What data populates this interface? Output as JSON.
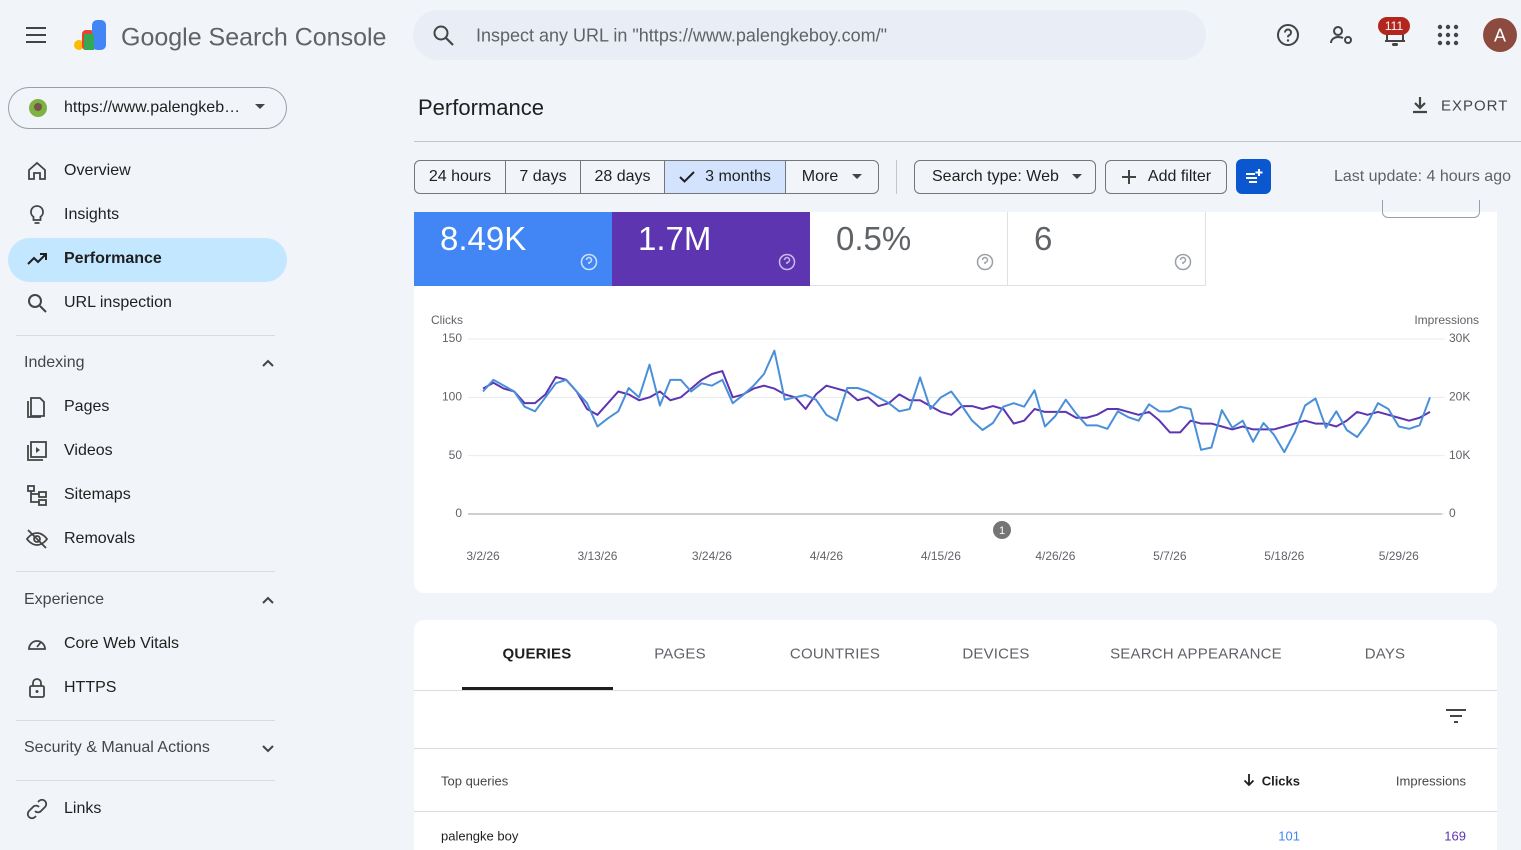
{
  "header": {
    "product": "Google Search Console",
    "search_placeholder": "Inspect any URL in \"https://www.palengkeboy.com/\"",
    "notification_count": "111",
    "avatar": "A"
  },
  "sidebar": {
    "property": "https://www.palengkeb…",
    "items": [
      "Overview",
      "Insights",
      "Performance",
      "URL inspection"
    ],
    "groups": [
      {
        "title": "Indexing",
        "items": [
          "Pages",
          "Videos",
          "Sitemaps",
          "Removals"
        ]
      },
      {
        "title": "Experience",
        "items": [
          "Core Web Vitals",
          "HTTPS"
        ]
      },
      {
        "title": "Security & Manual Actions",
        "items": []
      }
    ],
    "footer_items": [
      "Links"
    ]
  },
  "page": {
    "title": "Performance",
    "export": "EXPORT",
    "date_ranges": [
      "24 hours",
      "7 days",
      "28 days",
      "3 months",
      "More"
    ],
    "search_type": "Search type: Web",
    "add_filter": "Add filter",
    "last_update": "Last update: 4 hours ago"
  },
  "metrics": [
    "8.49K",
    "1.7M",
    "0.5%",
    "6"
  ],
  "chart_data": {
    "type": "line",
    "categories": [
      "3/2/26",
      null,
      null,
      null,
      null,
      null,
      null,
      null,
      null,
      null,
      null,
      "3/13/26",
      null,
      null,
      null,
      null,
      null,
      null,
      null,
      null,
      null,
      null,
      "3/24/26",
      null,
      null,
      null,
      null,
      null,
      null,
      null,
      null,
      null,
      null,
      "4/4/26",
      null,
      null,
      null,
      null,
      null,
      null,
      null,
      null,
      null,
      null,
      "4/15/26",
      null,
      null,
      null,
      null,
      null,
      null,
      null,
      null,
      null,
      null,
      "4/26/26",
      null,
      null,
      null,
      null,
      null,
      null,
      null,
      null,
      null,
      null,
      "5/7/26",
      null,
      null,
      null,
      null,
      null,
      null,
      null,
      null,
      null,
      null,
      "5/18/26",
      null,
      null,
      null,
      null,
      null,
      null,
      null,
      null,
      null,
      null,
      "5/29/26",
      null,
      null,
      null
    ],
    "series": [
      {
        "name": "Clicks",
        "color": "#4a90d9",
        "values": [
          105,
          115,
          110,
          105,
          92,
          88,
          100,
          112,
          115,
          105,
          95,
          75,
          82,
          88,
          108,
          100,
          128,
          93,
          115,
          115,
          105,
          112,
          110,
          115,
          95,
          102,
          110,
          120,
          140,
          98,
          100,
          102,
          98,
          85,
          80,
          108,
          108,
          105,
          100,
          95,
          88,
          90,
          117,
          90,
          100,
          105,
          93,
          80,
          72,
          78,
          92,
          95,
          92,
          106,
          75,
          84,
          98,
          86,
          76,
          76,
          73,
          88,
          83,
          80,
          94,
          88,
          88,
          92,
          90,
          55,
          57,
          89,
          74,
          80,
          62,
          78,
          68,
          53,
          70,
          93,
          99,
          74,
          88,
          72,
          66,
          78,
          95,
          90,
          75,
          73,
          76,
          100
        ]
      },
      {
        "name": "Impressions",
        "color": "#5e35b1",
        "axis": "y2",
        "values": [
          21500,
          22500,
          21500,
          21000,
          19000,
          19000,
          20500,
          23500,
          23000,
          21000,
          18000,
          17000,
          19000,
          21000,
          20500,
          19500,
          20000,
          21000,
          19500,
          20000,
          21500,
          23000,
          24000,
          24500,
          20000,
          20500,
          21500,
          22000,
          21500,
          20500,
          20000,
          18000,
          20500,
          22000,
          21500,
          21000,
          19500,
          20000,
          18500,
          19000,
          20500,
          19500,
          19500,
          18500,
          17500,
          17000,
          18500,
          18500,
          18000,
          18500,
          18000,
          15500,
          16000,
          18000,
          17500,
          17500,
          17500,
          16500,
          16500,
          17000,
          18000,
          18000,
          17500,
          17000,
          17500,
          16000,
          14000,
          14000,
          16000,
          15500,
          15500,
          15000,
          14500,
          15000,
          14500,
          14500,
          14500,
          15000,
          15500,
          16000,
          15500,
          15500,
          15000,
          16000,
          17500,
          17000,
          17500,
          17000,
          16500,
          16000,
          16500,
          17500
        ]
      }
    ],
    "ylim": [
      0,
      150
    ],
    "yticks": [
      0,
      50,
      100,
      150
    ],
    "y2lim": [
      0,
      30000
    ],
    "y2ticks": [
      0,
      {
        "value": 10000,
        "label": "10K"
      },
      {
        "value": 20000,
        "label": "20K"
      },
      {
        "value": 30000,
        "label": "30K"
      }
    ],
    "grid": true,
    "annotations": [
      "1"
    ]
  },
  "tabs": [
    "QUERIES",
    "PAGES",
    "COUNTRIES",
    "DEVICES",
    "SEARCH APPEARANCE",
    "DAYS"
  ],
  "table": {
    "header": [
      "Top queries",
      "Clicks",
      "Impressions"
    ],
    "rows": [
      [
        "palengke boy",
        "101",
        "169"
      ]
    ]
  }
}
